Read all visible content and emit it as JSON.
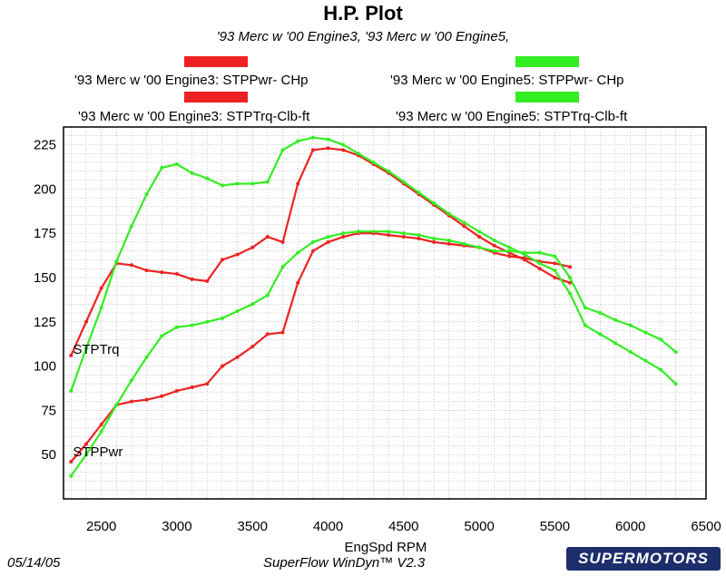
{
  "colors": {
    "engine3": "#ee2222",
    "engine5": "#33ee22"
  },
  "chart_data": {
    "type": "line",
    "title": "H.P. Plot",
    "subtitle": "'93 Merc w '00 Engine3, '93 Merc w '00 Engine5,",
    "xlabel": "EngSpd  RPM",
    "ylabel": "",
    "xlim": [
      2250,
      6500
    ],
    "ylim": [
      25,
      235
    ],
    "x_ticks": [
      2500,
      3000,
      3500,
      4000,
      4500,
      5000,
      5500,
      6000,
      6500
    ],
    "y_ticks": [
      50,
      75,
      100,
      125,
      150,
      175,
      200,
      225
    ],
    "grid": true,
    "legend": [
      {
        "label": "'93 Merc w '00 Engine3: STPPwr- CHp",
        "color": "#ee2222"
      },
      {
        "label": "'93 Merc w '00 Engine5: STPPwr- CHp",
        "color": "#33ee22"
      },
      {
        "label": "'93 Merc w '00 Engine3: STPTrq-Clb-ft",
        "color": "#ee2222"
      },
      {
        "label": "'93 Merc w '00 Engine5: STPTrq-Clb-ft",
        "color": "#33ee22"
      }
    ],
    "annotations": [
      {
        "text": "STPTrq",
        "x": 2300,
        "y": 108
      },
      {
        "text": "STPPwr",
        "x": 2300,
        "y": 50
      }
    ],
    "series": [
      {
        "name": "'93 Merc w '00 Engine3: STPTrq-Clb-ft",
        "color": "#ee2222",
        "x": [
          2300,
          2400,
          2500,
          2600,
          2700,
          2800,
          2900,
          3000,
          3100,
          3200,
          3300,
          3400,
          3500,
          3600,
          3700,
          3800,
          3900,
          4000,
          4100,
          4200,
          4300,
          4400,
          4500,
          4600,
          4700,
          4800,
          4900,
          5000,
          5100,
          5200,
          5300,
          5400,
          5500,
          5600
        ],
        "y": [
          106,
          125,
          144,
          158,
          157,
          154,
          153,
          152,
          149,
          148,
          160,
          163,
          167,
          173,
          170,
          203,
          222,
          223,
          222,
          219,
          214,
          209,
          203,
          197,
          191,
          185,
          179,
          173,
          168,
          164,
          160,
          155,
          150,
          147
        ]
      },
      {
        "name": "'93 Merc w '00 Engine3: STPPwr- CHp",
        "color": "#ee2222",
        "x": [
          2300,
          2400,
          2500,
          2600,
          2700,
          2800,
          2900,
          3000,
          3100,
          3200,
          3300,
          3400,
          3500,
          3600,
          3700,
          3800,
          3900,
          4000,
          4100,
          4200,
          4300,
          4400,
          4500,
          4600,
          4700,
          4800,
          4900,
          5000,
          5100,
          5200,
          5300,
          5400,
          5500,
          5600
        ],
        "y": [
          46,
          56,
          67,
          78,
          80,
          81,
          83,
          86,
          88,
          90,
          100,
          105,
          111,
          118,
          119,
          147,
          165,
          170,
          173,
          175,
          175,
          174,
          173,
          172,
          170,
          169,
          168,
          167,
          164,
          162,
          161,
          159,
          158,
          156
        ]
      },
      {
        "name": "'93 Merc w '00 Engine5: STPTrq-Clb-ft",
        "color": "#33ee22",
        "x": [
          2300,
          2400,
          2500,
          2600,
          2700,
          2800,
          2900,
          3000,
          3100,
          3200,
          3300,
          3400,
          3500,
          3600,
          3700,
          3800,
          3900,
          4000,
          4100,
          4200,
          4300,
          4400,
          4500,
          4600,
          4700,
          4800,
          4900,
          5000,
          5100,
          5200,
          5300,
          5400,
          5500,
          5600,
          5700,
          5800,
          5900,
          6000,
          6100,
          6200,
          6300
        ],
        "y": [
          86,
          110,
          133,
          159,
          179,
          197,
          212,
          214,
          209,
          206,
          202,
          203,
          203,
          204,
          222,
          227,
          229,
          228,
          225,
          220,
          215,
          210,
          204,
          198,
          192,
          186,
          181,
          176,
          171,
          167,
          163,
          158,
          154,
          141,
          123,
          118,
          113,
          108,
          103,
          98,
          90
        ]
      },
      {
        "name": "'93 Merc w '00 Engine5: STPPwr- CHp",
        "color": "#33ee22",
        "x": [
          2300,
          2400,
          2500,
          2600,
          2700,
          2800,
          2900,
          3000,
          3100,
          3200,
          3300,
          3400,
          3500,
          3600,
          3700,
          3800,
          3900,
          4000,
          4100,
          4200,
          4300,
          4400,
          4500,
          4600,
          4700,
          4800,
          4900,
          5000,
          5100,
          5200,
          5300,
          5400,
          5500,
          5600,
          5700,
          5800,
          5900,
          6000,
          6100,
          6200,
          6300
        ],
        "y": [
          38,
          50,
          63,
          78,
          92,
          105,
          117,
          122,
          123,
          125,
          127,
          131,
          135,
          140,
          156,
          164,
          170,
          173,
          175,
          176,
          176,
          176,
          175,
          174,
          172,
          171,
          169,
          167,
          165,
          165,
          164,
          164,
          162,
          150,
          133,
          130,
          126,
          123,
          119,
          115,
          108
        ]
      }
    ]
  },
  "footer": {
    "date": "05/14/05",
    "software": "SuperFlow WinDyn™ V2.3",
    "logo_text": "SUPERMOTORS"
  }
}
